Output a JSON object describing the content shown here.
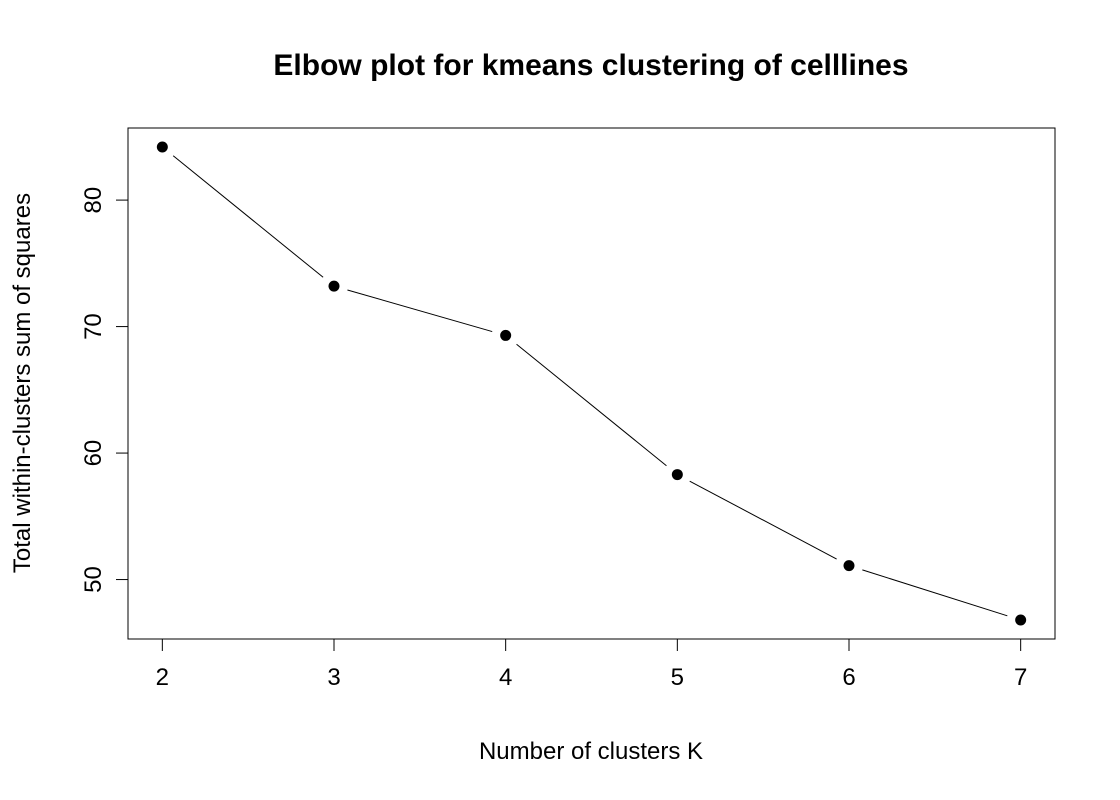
{
  "chart_data": {
    "type": "line",
    "title": "Elbow plot for kmeans clustering of celllines",
    "xlabel": "Number of clusters K",
    "ylabel": "Total within-clusters sum of squares",
    "x": [
      2,
      3,
      4,
      5,
      6,
      7
    ],
    "y": [
      84.2,
      73.2,
      69.3,
      58.3,
      51.1,
      46.8
    ],
    "xlim": [
      1.8,
      7.2
    ],
    "ylim": [
      45.3,
      85.7
    ],
    "xticks": [
      2,
      3,
      4,
      5,
      6,
      7
    ],
    "yticks": [
      50,
      60,
      70,
      80
    ],
    "xtick_labels": [
      "2",
      "3",
      "4",
      "5",
      "6",
      "7"
    ],
    "ytick_labels": [
      "50",
      "60",
      "70",
      "80"
    ],
    "grid": false,
    "legend": "none",
    "marker": "filled-circle",
    "colors": {
      "line": "#000000",
      "points": "#000000",
      "frame": "#000000"
    }
  }
}
